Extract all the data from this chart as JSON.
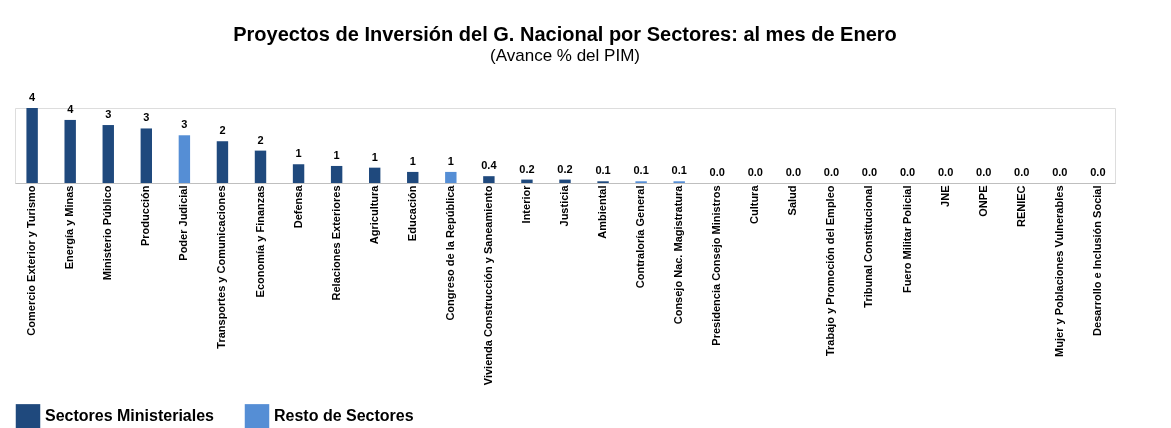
{
  "chart_data": {
    "type": "bar",
    "title": "Proyectos de Inversión del G. Nacional por Sectores: al mes de Enero",
    "subtitle": "(Avance % del PIM)",
    "categories": [
      "Comercio Exterior y Turismo",
      "Energía y Minas",
      "Ministerio Público",
      "Producción",
      "Poder Judicial",
      "Transportes y Comunicaciones",
      "Economía y Finanzas",
      "Defensa",
      "Relaciones Exteriores",
      "Agricultura",
      "Educación",
      "Congreso de la República",
      "Vivienda Construcción y Saneamiento",
      "Interior",
      "Justicia",
      "Ambiental",
      "Contraloría General",
      "Consejo Nac. Magistratura",
      "Presidencia Consejo Ministros",
      "Cultura",
      "Salud",
      "Trabajo y Promoción del Empleo",
      "Tribunal Constitucional",
      "Fuero Militar Policial",
      "JNE",
      "ONPE",
      "RENIEC",
      "Mujer y Poblaciones Vulnerables",
      "Desarrollo e Inclusión Social"
    ],
    "series": [
      {
        "name": "Sectores Ministeriales",
        "color": "#1f497d",
        "values": [
          4.4,
          3.7,
          3.4,
          3.2,
          null,
          2.45,
          1.9,
          1.1,
          1.0,
          0.9,
          0.65,
          null,
          0.4,
          0.2,
          0.2,
          0.1,
          null,
          null,
          0.0,
          0.0,
          0.0,
          0.0,
          null,
          0.0,
          null,
          null,
          null,
          0.0,
          0.0
        ],
        "value_labels": [
          "4",
          "4",
          "3",
          "3",
          null,
          "2",
          "2",
          "1",
          "1",
          "1",
          "1",
          null,
          "0.4",
          "0.2",
          "0.2",
          "0.1",
          null,
          null,
          "0.0",
          "0.0",
          "0.0",
          "0.0",
          null,
          "0.0",
          null,
          null,
          null,
          "0.0",
          "0.0"
        ]
      },
      {
        "name": "Resto de Sectores",
        "color": "#558ed5",
        "values": [
          null,
          null,
          null,
          null,
          2.8,
          null,
          null,
          null,
          null,
          null,
          null,
          0.65,
          null,
          null,
          null,
          null,
          0.1,
          0.1,
          null,
          null,
          null,
          null,
          0.0,
          null,
          0.0,
          0.0,
          0.0,
          null,
          null
        ],
        "value_labels": [
          null,
          null,
          null,
          null,
          "3",
          null,
          null,
          null,
          null,
          null,
          null,
          "1",
          null,
          null,
          null,
          null,
          "0.1",
          "0.1",
          null,
          null,
          null,
          null,
          "0.0",
          null,
          "0.0",
          "0.0",
          "0.0",
          null,
          null
        ]
      }
    ],
    "legend": "bottom",
    "grid": false
  }
}
